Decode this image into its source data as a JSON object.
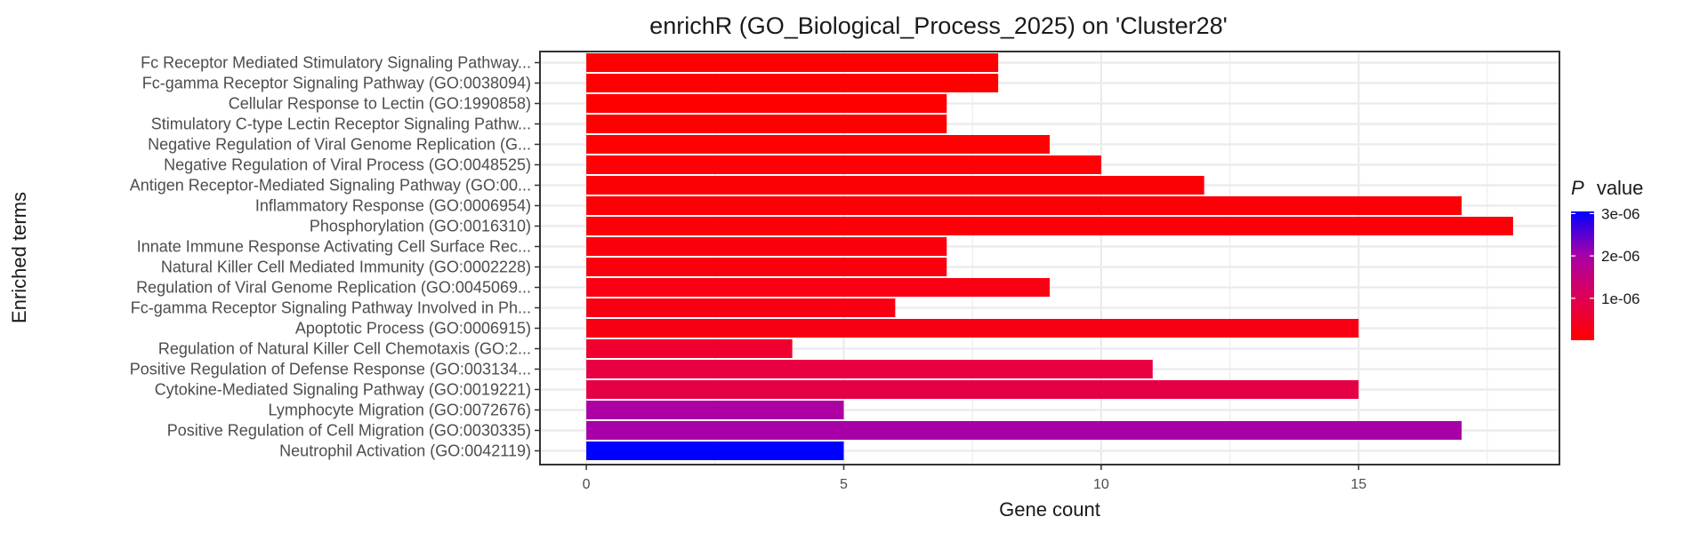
{
  "chart_data": {
    "type": "bar",
    "orientation": "horizontal",
    "title": "enrichR (GO_Biological_Process_2025) on 'Cluster28'",
    "xlabel": "Gene count",
    "ylabel": "Enriched terms",
    "xlim": [
      -0.9,
      18.9
    ],
    "xticks": [
      0,
      5,
      10,
      15
    ],
    "grid": true,
    "legend_position": "right",
    "legend": {
      "title_italic": "P",
      "title_rest": "value",
      "labels": [
        "3e-06",
        "2e-06",
        "1e-06"
      ],
      "label_values": [
        3e-06,
        2e-06,
        1e-06
      ],
      "range": [
        1e-08,
        3.05e-06
      ],
      "color_low": "#FF0000",
      "color_high": "#0000FF"
    },
    "categories": [
      "Fc Receptor Mediated Stimulatory Signaling Pathway...",
      "Fc-gamma Receptor Signaling Pathway (GO:0038094)",
      "Cellular Response to Lectin (GO:1990858)",
      "Stimulatory C-type Lectin Receptor Signaling Pathw...",
      "Negative Regulation of Viral Genome Replication (G...",
      "Negative Regulation of Viral Process (GO:0048525)",
      "Antigen Receptor-Mediated Signaling Pathway (GO:00...",
      "Inflammatory Response (GO:0006954)",
      "Phosphorylation (GO:0016310)",
      "Innate Immune Response Activating Cell Surface Rec...",
      "Natural Killer Cell Mediated Immunity (GO:0002228)",
      "Regulation of Viral Genome Replication (GO:0045069...",
      "Fc-gamma Receptor Signaling Pathway Involved in Ph...",
      "Apoptotic Process (GO:0006915)",
      "Regulation of Natural Killer Cell Chemotaxis (GO:2...",
      "Positive Regulation of Defense Response (GO:003134...",
      "Cytokine-Mediated Signaling Pathway (GO:0019221)",
      "Lymphocyte Migration (GO:0072676)",
      "Positive Regulation of Cell Migration (GO:0030335)",
      "Neutrophil Activation (GO:0042119)"
    ],
    "values": [
      8,
      8,
      7,
      7,
      9,
      10,
      12,
      17,
      18,
      7,
      7,
      9,
      6,
      15,
      4,
      11,
      15,
      5,
      17,
      5
    ],
    "p_values": [
      1e-08,
      1e-08,
      1e-08,
      1e-08,
      2e-08,
      2e-08,
      5e-08,
      5e-08,
      6e-08,
      1e-07,
      1e-07,
      1.2e-07,
      1.3e-07,
      1.3e-07,
      4e-07,
      6e-07,
      6e-07,
      1.6e-06,
      1.7e-06,
      3e-06
    ],
    "bar_colors": [
      "#FF0000",
      "#FF0000",
      "#FF0000",
      "#FF0000",
      "#FF0003",
      "#FF0004",
      "#FC0008",
      "#FC0008",
      "#FC000A",
      "#FA000D",
      "#FA000E",
      "#F90012",
      "#F80012",
      "#F80014",
      "#EF002E",
      "#E80042",
      "#E50045",
      "#AC00A2",
      "#A800A8",
      "#0000FF"
    ]
  }
}
